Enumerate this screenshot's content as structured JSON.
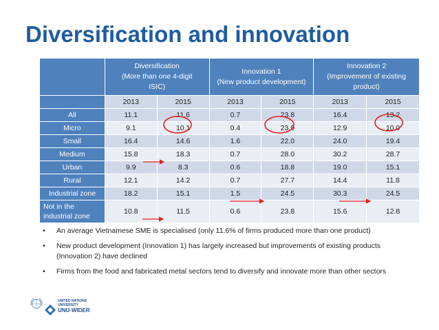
{
  "title": "Diversification and innovation",
  "table": {
    "groups": [
      {
        "line1": "Diversification",
        "line2": "(More than one 4-digit",
        "line3": "ISIC)"
      },
      {
        "line1": "Innovation 1",
        "line2": "(New product development)"
      },
      {
        "line1": "Innovation 2",
        "line2": "(Improvement of existing",
        "line3": "product)"
      }
    ],
    "years": [
      "2013",
      "2015",
      "2013",
      "2015",
      "2013",
      "2015"
    ],
    "rows": [
      {
        "label": "All",
        "values": [
          "11.1",
          "11.6",
          "0.7",
          "23.8",
          "16.4",
          "13.2"
        ]
      },
      {
        "label": "Micro",
        "values": [
          "9.1",
          "10.1",
          "0.4",
          "23.9",
          "12.9",
          "10.0"
        ]
      },
      {
        "label": "Small",
        "values": [
          "16.4",
          "14.6",
          "1.6",
          "22.0",
          "24.0",
          "19.4"
        ]
      },
      {
        "label": "Medium",
        "values": [
          "15.8",
          "18.3",
          "0.7",
          "28.0",
          "30.2",
          "28.7"
        ]
      },
      {
        "label": "Urban",
        "values": [
          "9.9",
          "8.3",
          "0.6",
          "18.8",
          "19.0",
          "15.1"
        ]
      },
      {
        "label": "Rural",
        "values": [
          "12.1",
          "14.2",
          "0.7",
          "27.7",
          "14.4",
          "11.8"
        ]
      },
      {
        "label": "Industrial zone",
        "values": [
          "18.2",
          "15.1",
          "1.5",
          "24.5",
          "30.3",
          "24.5"
        ]
      },
      {
        "label_line1": "Not in the",
        "label_line2": "industrial zone",
        "values": [
          "10.8",
          "11.5",
          "0.6",
          "23.8",
          "15.6",
          "12.8"
        ]
      }
    ]
  },
  "bullets": {
    "marker": "•",
    "items": [
      {
        "line1": "An average Vietnamese SME is specialised (only 11.6% of firms produced more than one product)"
      },
      {
        "line1": "New product development (Innovation 1) has largely increased but improvements of existing products",
        "line2": "(Innovation 2) have declined"
      },
      {
        "line1": "Firms from the food and fabricated metal sectors tend to diversify and innovate more than other sectors"
      }
    ]
  },
  "logo": {
    "line1": "UNITED NATIONS",
    "line2": "UNIVERSITY",
    "line3": "UNU-WIDER"
  },
  "colors": {
    "title": "#1f5c9e",
    "header": "#4f81bd",
    "row_dark": "#d0d8e8",
    "row_light": "#e9edf4",
    "annotation": "#e02020"
  }
}
